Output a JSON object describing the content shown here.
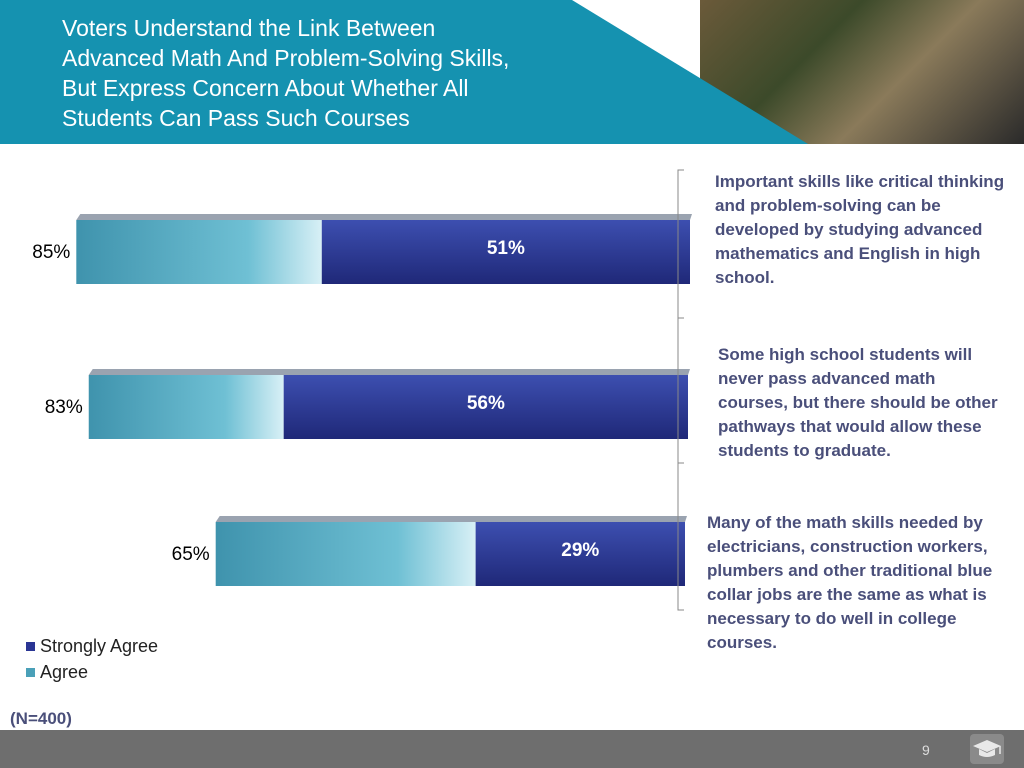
{
  "slide": {
    "title_lines": [
      "Voters Understand the Link Between",
      "Advanced Math And Problem-Solving Skills,",
      "But  Express Concern About Whether All",
      "Students Can Pass Such Courses"
    ],
    "note": "(N=400)",
    "page_number": "9"
  },
  "colors": {
    "header_teal": "#1592b0",
    "strongly_agree": "#2a3594",
    "agree": "#4aa0b8",
    "statement_text": "#4a4f7a",
    "footer": "#6e6e6e"
  },
  "icons": {
    "logo": "graduation-cap-icon"
  },
  "chart_data": {
    "type": "bar",
    "orientation": "horizontal",
    "stacked": true,
    "categories": [
      "Important skills like critical thinking and problem-solving can be developed by studying advanced mathematics and English in high school.",
      "Some high school students will never pass advanced math courses, but there should be other pathways that would allow these students to graduate.",
      "Many of the math skills needed by electricians, construction workers, plumbers and other traditional blue collar jobs are the same as what is necessary to do well in college courses."
    ],
    "totals": [
      85,
      83,
      65
    ],
    "total_labels": [
      "85%",
      "83%",
      "65%"
    ],
    "series": [
      {
        "name": "Strongly Agree",
        "values": [
          51,
          56,
          29
        ],
        "labels": [
          "51%",
          "56%",
          "29%"
        ]
      },
      {
        "name": "Agree",
        "values": [
          34,
          27,
          36
        ]
      }
    ],
    "legend": [
      "Strongly Agree",
      "Agree"
    ],
    "legend_position": "bottom-left",
    "xlim": [
      0,
      85
    ],
    "grid": false
  }
}
